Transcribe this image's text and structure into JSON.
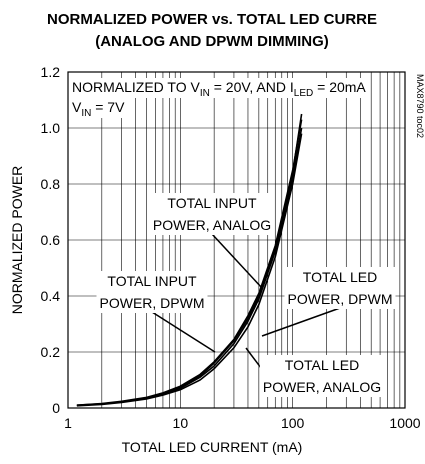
{
  "chart_data": {
    "type": "line",
    "title": "NORMALIZED POWER vs. TOTAL LED CURRE",
    "subtitle": "(ANALOG AND DPWM DIMMING)",
    "x_label": "TOTAL LED CURRENT (mA)",
    "y_label": "NORMALIZED POWER",
    "log_x": true,
    "grid": true,
    "xlim": [
      1,
      1000
    ],
    "xticks": [
      1,
      10,
      100,
      1000
    ],
    "ylim": [
      0,
      1.2
    ],
    "yticks": [
      0,
      0.2,
      0.4,
      0.6,
      0.8,
      {
        "value": 1.0,
        "label": "1.0"
      },
      1.2
    ],
    "note1": [
      "NORMALIZED TO V",
      "IN",
      " = 20V, AND I",
      "LED",
      " = 20mA"
    ],
    "note2": [
      "V",
      "IN",
      " =  7V"
    ],
    "code": "MAX8790 toc02",
    "x": [
      1.2,
      2,
      3,
      5,
      7,
      10,
      15,
      20,
      30,
      40,
      50,
      70,
      100,
      120
    ],
    "series": [
      {
        "label": [
          "TOTAL INPUT",
          "POWER, ANALOG"
        ],
        "color": "#000000",
        "values": [
          0.01,
          0.015,
          0.022,
          0.035,
          0.05,
          0.07,
          0.11,
          0.15,
          0.23,
          0.31,
          0.39,
          0.56,
          0.82,
          1.0
        ]
      },
      {
        "label": [
          "TOTAL INPUT",
          "POWER, DPWM"
        ],
        "color": "#000000",
        "values": [
          0.01,
          0.016,
          0.024,
          0.038,
          0.054,
          0.078,
          0.12,
          0.165,
          0.245,
          0.33,
          0.41,
          0.58,
          0.85,
          1.03
        ]
      },
      {
        "label": [
          "TOTAL LED",
          "POWER, DPWM"
        ],
        "color": "#000000",
        "values": [
          0.008,
          0.013,
          0.02,
          0.032,
          0.046,
          0.065,
          0.1,
          0.14,
          0.215,
          0.29,
          0.37,
          0.54,
          0.8,
          0.98
        ]
      },
      {
        "label": [
          "TOTAL LED",
          "POWER, ANALOG"
        ],
        "color": "#000000",
        "values": [
          0.009,
          0.014,
          0.022,
          0.036,
          0.052,
          0.075,
          0.115,
          0.16,
          0.24,
          0.32,
          0.4,
          0.57,
          0.84,
          1.05
        ]
      }
    ]
  }
}
